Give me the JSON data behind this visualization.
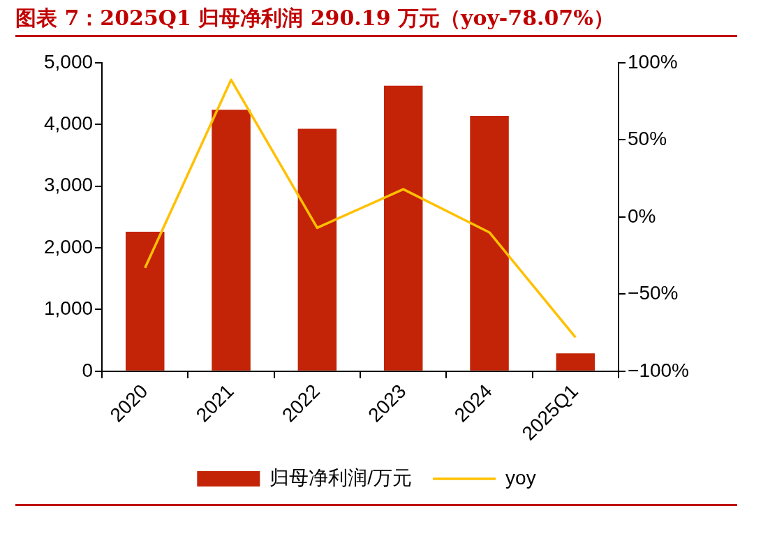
{
  "chart_data": {
    "type": "bar",
    "title": "图表 7：2025Q1 归母净利润 290.19 万元（yoy-78.07%）",
    "categories": [
      "2020",
      "2021",
      "2022",
      "2023",
      "2024",
      "2025Q1"
    ],
    "series": [
      {
        "name": "归母净利润/万元",
        "color": "#c32306",
        "values": [
          2260,
          4240,
          3930,
          4630,
          4140,
          290.19
        ]
      },
      {
        "name": "yoy",
        "type": "line",
        "axis": "y2",
        "color": "#ffc000",
        "values": [
          -33,
          89,
          -7,
          18,
          -10,
          -78.07
        ]
      }
    ],
    "ylim": [
      0,
      5000
    ],
    "yticks": [
      0,
      {
        "value": 1000,
        "label": "1,000"
      },
      {
        "value": 2000,
        "label": "2,000"
      },
      {
        "value": 3000,
        "label": "3,000"
      },
      {
        "value": 4000,
        "label": "4,000"
      },
      {
        "value": 5000,
        "label": "5,000"
      }
    ],
    "y2lim": [
      -100,
      100
    ],
    "y2ticks": [
      {
        "value": -100,
        "label": "−100%"
      },
      {
        "value": -50,
        "label": "−50%"
      },
      {
        "value": 0,
        "label": "0%"
      },
      {
        "value": 50,
        "label": "50%"
      },
      {
        "value": 100,
        "label": "100%"
      }
    ],
    "grid": false,
    "legend": "bottom",
    "marker": "none",
    "line_style": "solid"
  }
}
